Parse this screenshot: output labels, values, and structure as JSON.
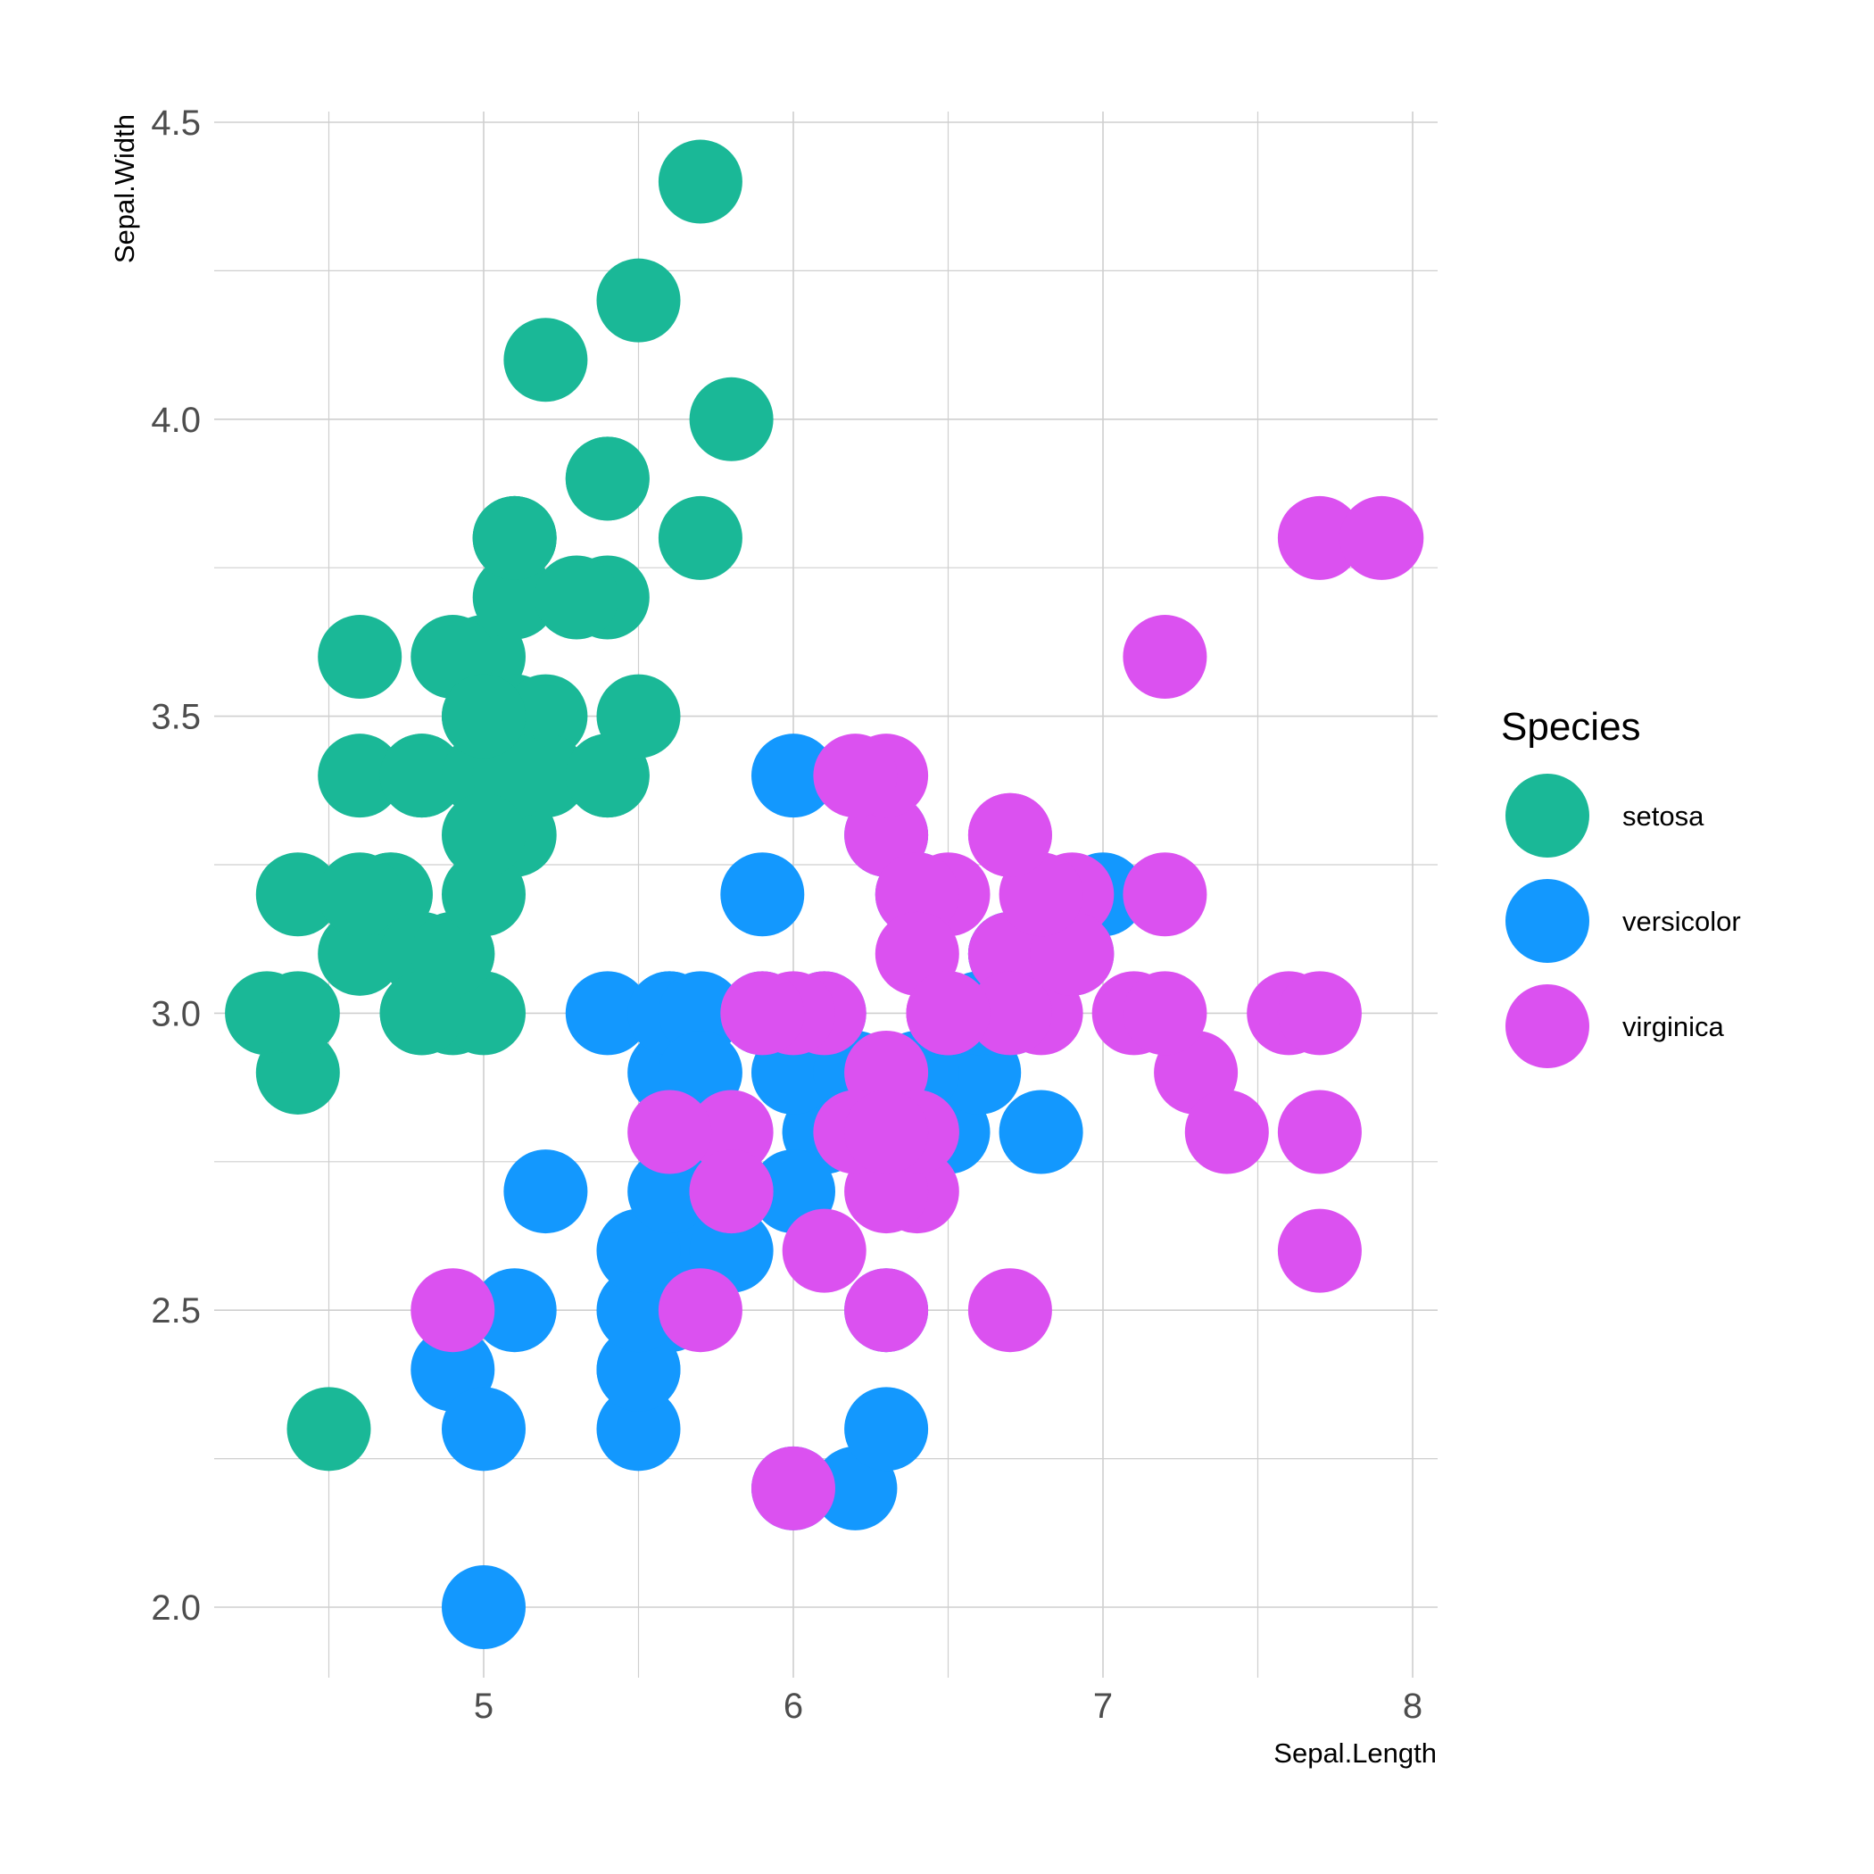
{
  "chart_data": {
    "type": "scatter",
    "xlabel": "Sepal.Length",
    "ylabel": "Sepal.Width",
    "xlim": [
      4.3,
      7.9
    ],
    "ylim": [
      2.0,
      4.4
    ],
    "x_ticks": [
      "5",
      "6",
      "7",
      "8"
    ],
    "y_ticks": [
      "2.0",
      "2.5",
      "3.0",
      "3.5",
      "4.0",
      "4.5"
    ],
    "grid": true,
    "legend": {
      "title": "Species",
      "position": "right"
    },
    "series": [
      {
        "name": "setosa",
        "color": "#1ab897",
        "points": [
          [
            5.1,
            3.5
          ],
          [
            4.9,
            3.0
          ],
          [
            4.7,
            3.2
          ],
          [
            4.6,
            3.1
          ],
          [
            5.0,
            3.6
          ],
          [
            5.4,
            3.9
          ],
          [
            4.6,
            3.4
          ],
          [
            5.0,
            3.4
          ],
          [
            4.4,
            2.9
          ],
          [
            4.9,
            3.1
          ],
          [
            5.4,
            3.7
          ],
          [
            4.8,
            3.4
          ],
          [
            4.8,
            3.0
          ],
          [
            4.3,
            3.0
          ],
          [
            5.8,
            4.0
          ],
          [
            5.7,
            4.4
          ],
          [
            5.4,
            3.9
          ],
          [
            5.1,
            3.5
          ],
          [
            5.7,
            3.8
          ],
          [
            5.1,
            3.8
          ],
          [
            5.4,
            3.4
          ],
          [
            5.1,
            3.7
          ],
          [
            4.6,
            3.6
          ],
          [
            5.1,
            3.3
          ],
          [
            4.8,
            3.4
          ],
          [
            5.0,
            3.0
          ],
          [
            5.0,
            3.4
          ],
          [
            5.2,
            3.5
          ],
          [
            5.2,
            3.4
          ],
          [
            4.7,
            3.2
          ],
          [
            4.8,
            3.1
          ],
          [
            5.4,
            3.4
          ],
          [
            5.2,
            4.1
          ],
          [
            5.5,
            4.2
          ],
          [
            4.9,
            3.1
          ],
          [
            5.0,
            3.2
          ],
          [
            5.5,
            3.5
          ],
          [
            4.9,
            3.6
          ],
          [
            4.4,
            3.0
          ],
          [
            5.1,
            3.4
          ],
          [
            5.0,
            3.5
          ],
          [
            4.5,
            2.3
          ],
          [
            4.4,
            3.2
          ],
          [
            5.0,
            3.5
          ],
          [
            5.1,
            3.8
          ],
          [
            4.8,
            3.0
          ],
          [
            5.1,
            3.8
          ],
          [
            4.6,
            3.2
          ],
          [
            5.3,
            3.7
          ],
          [
            5.0,
            3.3
          ]
        ]
      },
      {
        "name": "versicolor",
        "color": "#1398fe",
        "points": [
          [
            7.0,
            3.2
          ],
          [
            6.4,
            3.2
          ],
          [
            6.9,
            3.1
          ],
          [
            5.5,
            2.3
          ],
          [
            6.5,
            2.8
          ],
          [
            5.7,
            2.8
          ],
          [
            6.3,
            3.3
          ],
          [
            4.9,
            2.4
          ],
          [
            6.6,
            2.9
          ],
          [
            5.2,
            2.7
          ],
          [
            5.0,
            2.0
          ],
          [
            5.9,
            3.0
          ],
          [
            6.0,
            2.2
          ],
          [
            6.1,
            2.9
          ],
          [
            5.6,
            2.9
          ],
          [
            6.7,
            3.1
          ],
          [
            5.6,
            3.0
          ],
          [
            5.8,
            2.7
          ],
          [
            6.2,
            2.2
          ],
          [
            5.6,
            2.5
          ],
          [
            5.9,
            3.2
          ],
          [
            6.1,
            2.8
          ],
          [
            6.3,
            2.5
          ],
          [
            6.1,
            2.8
          ],
          [
            6.4,
            2.9
          ],
          [
            6.6,
            3.0
          ],
          [
            6.8,
            2.8
          ],
          [
            6.7,
            3.0
          ],
          [
            6.0,
            2.9
          ],
          [
            5.7,
            2.6
          ],
          [
            5.5,
            2.4
          ],
          [
            5.5,
            2.4
          ],
          [
            5.8,
            2.7
          ],
          [
            6.0,
            2.7
          ],
          [
            5.4,
            3.0
          ],
          [
            6.0,
            3.4
          ],
          [
            6.7,
            3.1
          ],
          [
            6.3,
            2.3
          ],
          [
            5.6,
            3.0
          ],
          [
            5.5,
            2.5
          ],
          [
            5.5,
            2.6
          ],
          [
            6.1,
            3.0
          ],
          [
            5.8,
            2.6
          ],
          [
            5.0,
            2.3
          ],
          [
            5.6,
            2.7
          ],
          [
            5.7,
            3.0
          ],
          [
            5.7,
            2.9
          ],
          [
            6.2,
            2.9
          ],
          [
            5.1,
            2.5
          ],
          [
            5.7,
            2.8
          ]
        ]
      },
      {
        "name": "virginica",
        "color": "#db51f0",
        "points": [
          [
            6.3,
            3.3
          ],
          [
            5.8,
            2.7
          ],
          [
            7.1,
            3.0
          ],
          [
            6.3,
            2.9
          ],
          [
            6.5,
            3.0
          ],
          [
            7.6,
            3.0
          ],
          [
            4.9,
            2.5
          ],
          [
            7.3,
            2.9
          ],
          [
            6.7,
            2.5
          ],
          [
            7.2,
            3.6
          ],
          [
            6.5,
            3.2
          ],
          [
            6.4,
            2.7
          ],
          [
            6.8,
            3.0
          ],
          [
            5.7,
            2.5
          ],
          [
            5.8,
            2.8
          ],
          [
            6.4,
            3.2
          ],
          [
            6.5,
            3.0
          ],
          [
            7.7,
            3.8
          ],
          [
            7.7,
            2.6
          ],
          [
            6.0,
            2.2
          ],
          [
            6.9,
            3.2
          ],
          [
            5.6,
            2.8
          ],
          [
            7.7,
            2.8
          ],
          [
            6.3,
            2.7
          ],
          [
            6.7,
            3.3
          ],
          [
            7.2,
            3.2
          ],
          [
            6.2,
            2.8
          ],
          [
            6.1,
            3.0
          ],
          [
            6.4,
            2.8
          ],
          [
            7.2,
            3.0
          ],
          [
            7.4,
            2.8
          ],
          [
            7.9,
            3.8
          ],
          [
            6.4,
            2.8
          ],
          [
            6.3,
            2.8
          ],
          [
            6.1,
            2.6
          ],
          [
            7.7,
            3.0
          ],
          [
            6.3,
            3.4
          ],
          [
            6.4,
            3.1
          ],
          [
            6.0,
            3.0
          ],
          [
            6.9,
            3.1
          ],
          [
            6.7,
            3.1
          ],
          [
            6.9,
            3.1
          ],
          [
            5.8,
            2.7
          ],
          [
            6.8,
            3.2
          ],
          [
            6.7,
            3.3
          ],
          [
            6.7,
            3.0
          ],
          [
            6.3,
            2.5
          ],
          [
            6.5,
            3.0
          ],
          [
            6.2,
            3.4
          ],
          [
            5.9,
            3.0
          ]
        ]
      }
    ]
  }
}
